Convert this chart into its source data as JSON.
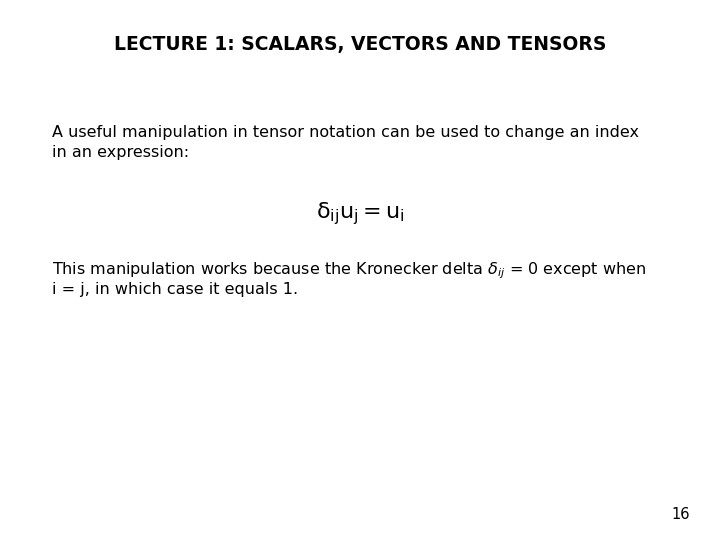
{
  "title": "LECTURE 1: SCALARS, VECTORS AND TENSORS",
  "background_color": "#ffffff",
  "text_color": "#000000",
  "title_fontsize": 13.5,
  "body_fontsize": 11.5,
  "equation_fontsize": 14,
  "page_number": "16",
  "paragraph1_line1": "A useful manipulation in tensor notation can be used to change an index",
  "paragraph1_line2": "in an expression:",
  "equation": "$\\mathsf{\\delta_{ij}u_j = u_i}$",
  "paragraph2_line1": "This manipulation works because the Kronecker delta δᵢⱼ = 0 except when",
  "paragraph2_line2": "i = j, in which case it equals 1.",
  "font_family": "DejaVu Sans"
}
